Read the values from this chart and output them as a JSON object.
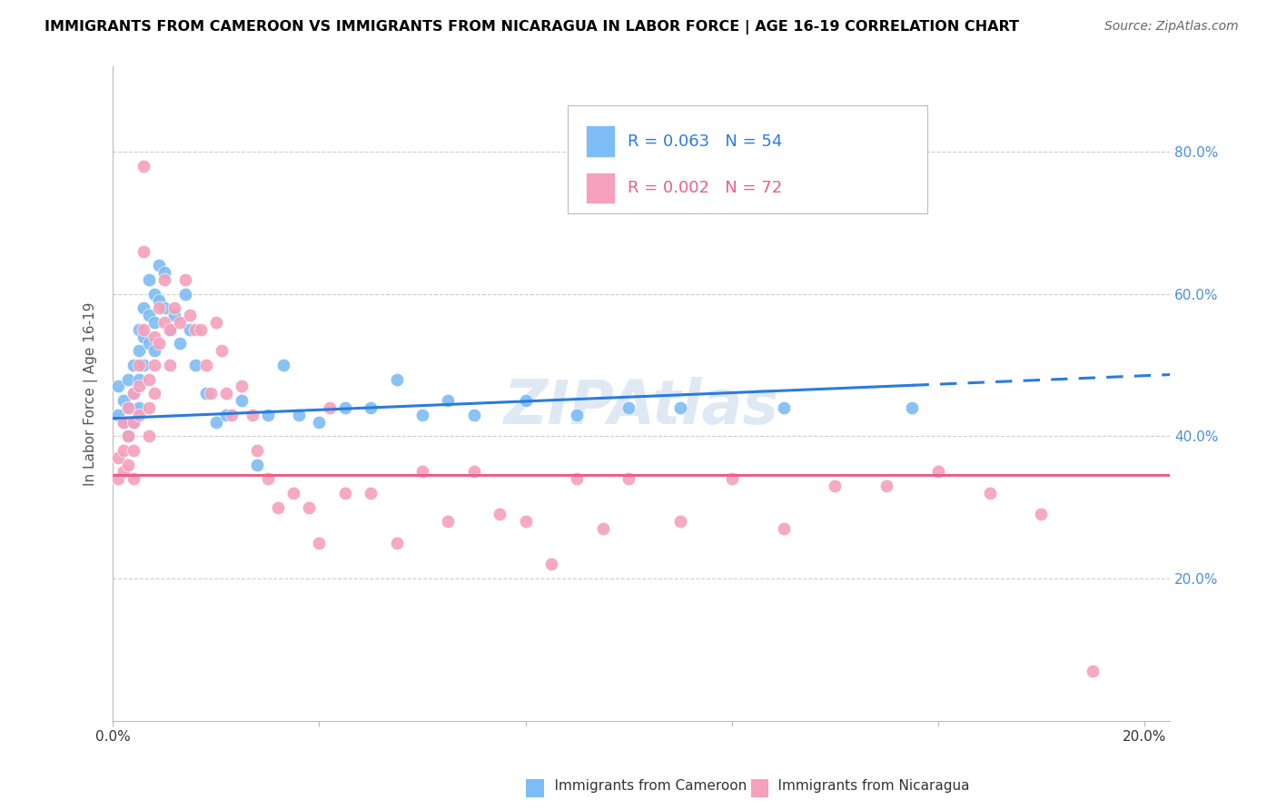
{
  "title": "IMMIGRANTS FROM CAMEROON VS IMMIGRANTS FROM NICARAGUA IN LABOR FORCE | AGE 16-19 CORRELATION CHART",
  "source": "Source: ZipAtlas.com",
  "ylabel": "In Labor Force | Age 16-19",
  "xlim": [
    0.0,
    0.205
  ],
  "ylim": [
    0.0,
    0.92
  ],
  "cameroon_color": "#7dbcf5",
  "nicaragua_color": "#f5a0bc",
  "cameroon_line_color": "#2b7bde",
  "nicaragua_line_color": "#e8608a",
  "tick_color": "#4a90d9",
  "cameroon_R": 0.063,
  "cameroon_N": 54,
  "nicaragua_R": 0.002,
  "nicaragua_N": 72,
  "watermark": "ZIPAtlas",
  "cam_x": [
    0.001,
    0.001,
    0.002,
    0.002,
    0.003,
    0.003,
    0.003,
    0.004,
    0.004,
    0.004,
    0.005,
    0.005,
    0.005,
    0.005,
    0.006,
    0.006,
    0.006,
    0.007,
    0.007,
    0.007,
    0.008,
    0.008,
    0.008,
    0.009,
    0.009,
    0.01,
    0.01,
    0.011,
    0.012,
    0.013,
    0.014,
    0.015,
    0.016,
    0.018,
    0.02,
    0.022,
    0.025,
    0.028,
    0.03,
    0.033,
    0.036,
    0.04,
    0.045,
    0.05,
    0.055,
    0.06,
    0.065,
    0.07,
    0.08,
    0.09,
    0.1,
    0.11,
    0.13,
    0.155
  ],
  "cam_y": [
    0.43,
    0.47,
    0.45,
    0.42,
    0.48,
    0.44,
    0.4,
    0.5,
    0.46,
    0.42,
    0.55,
    0.52,
    0.48,
    0.44,
    0.58,
    0.54,
    0.5,
    0.62,
    0.57,
    0.53,
    0.6,
    0.56,
    0.52,
    0.64,
    0.59,
    0.63,
    0.58,
    0.55,
    0.57,
    0.53,
    0.6,
    0.55,
    0.5,
    0.46,
    0.42,
    0.43,
    0.45,
    0.36,
    0.43,
    0.5,
    0.43,
    0.42,
    0.44,
    0.44,
    0.48,
    0.43,
    0.45,
    0.43,
    0.45,
    0.43,
    0.44,
    0.44,
    0.44,
    0.44
  ],
  "nic_x": [
    0.001,
    0.001,
    0.002,
    0.002,
    0.002,
    0.003,
    0.003,
    0.003,
    0.004,
    0.004,
    0.004,
    0.004,
    0.005,
    0.005,
    0.005,
    0.006,
    0.006,
    0.006,
    0.007,
    0.007,
    0.007,
    0.008,
    0.008,
    0.008,
    0.009,
    0.009,
    0.01,
    0.01,
    0.011,
    0.011,
    0.012,
    0.013,
    0.014,
    0.015,
    0.016,
    0.017,
    0.018,
    0.019,
    0.02,
    0.021,
    0.022,
    0.023,
    0.025,
    0.027,
    0.028,
    0.03,
    0.032,
    0.035,
    0.038,
    0.04,
    0.042,
    0.045,
    0.05,
    0.055,
    0.06,
    0.065,
    0.07,
    0.075,
    0.08,
    0.085,
    0.09,
    0.095,
    0.1,
    0.11,
    0.12,
    0.13,
    0.14,
    0.15,
    0.16,
    0.17,
    0.18,
    0.19
  ],
  "nic_y": [
    0.37,
    0.34,
    0.42,
    0.38,
    0.35,
    0.44,
    0.4,
    0.36,
    0.46,
    0.42,
    0.38,
    0.34,
    0.5,
    0.47,
    0.43,
    0.78,
    0.66,
    0.55,
    0.48,
    0.44,
    0.4,
    0.54,
    0.5,
    0.46,
    0.58,
    0.53,
    0.62,
    0.56,
    0.55,
    0.5,
    0.58,
    0.56,
    0.62,
    0.57,
    0.55,
    0.55,
    0.5,
    0.46,
    0.56,
    0.52,
    0.46,
    0.43,
    0.47,
    0.43,
    0.38,
    0.34,
    0.3,
    0.32,
    0.3,
    0.25,
    0.44,
    0.32,
    0.32,
    0.25,
    0.35,
    0.28,
    0.35,
    0.29,
    0.28,
    0.22,
    0.34,
    0.27,
    0.34,
    0.28,
    0.34,
    0.27,
    0.33,
    0.33,
    0.35,
    0.32,
    0.29,
    0.07
  ]
}
